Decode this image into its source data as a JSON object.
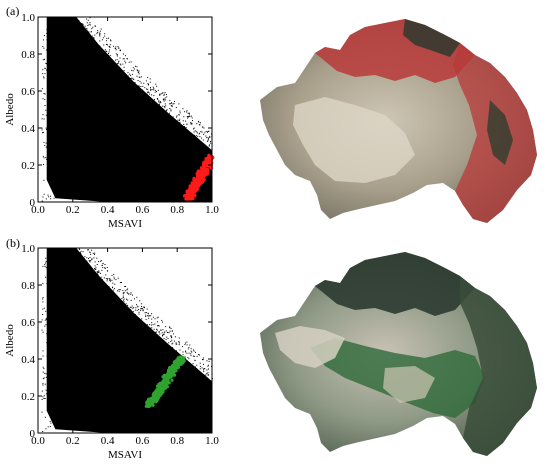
{
  "panels": [
    {
      "label": "(a)",
      "highlight_color": "#ff1a1a",
      "map_tint": "#b83a3a"
    },
    {
      "label": "(b)",
      "highlight_color": "#2fa32f",
      "map_tint": "#2f6a3a"
    }
  ],
  "chart_data": [
    {
      "type": "scatter",
      "title": "",
      "xlabel": "MSAVI",
      "ylabel": "Albedo",
      "xlim": [
        0.0,
        1.0
      ],
      "ylim": [
        0.0,
        1.0
      ],
      "xticks": [
        "0.0",
        "0.2",
        "0.4",
        "0.6",
        "0.8",
        "1.0"
      ],
      "yticks": [
        "0",
        "0.2",
        "0.4",
        "0.6",
        "0.8",
        "1.0"
      ],
      "series": [
        {
          "color": "#000000",
          "envelope_upper": [
            [
              0.05,
              1.0
            ],
            [
              0.22,
              1.0
            ],
            [
              0.35,
              0.85
            ],
            [
              0.55,
              0.65
            ],
            [
              0.75,
              0.48
            ],
            [
              0.9,
              0.36
            ],
            [
              1.0,
              0.28
            ]
          ],
          "envelope_lower": [
            [
              0.05,
              0.12
            ],
            [
              0.1,
              0.02
            ],
            [
              0.4,
              0.0
            ],
            [
              0.7,
              0.0
            ],
            [
              1.0,
              0.0
            ]
          ],
          "core_band": [
            [
              0.1,
              0.98
            ],
            [
              0.2,
              0.92
            ],
            [
              0.3,
              0.72
            ],
            [
              0.5,
              0.42
            ],
            [
              0.7,
              0.22
            ],
            [
              0.95,
              0.05
            ]
          ]
        },
        {
          "color": "#ff1a1a",
          "points": [
            [
              0.86,
              0.02
            ],
            [
              0.9,
              0.06
            ],
            [
              0.93,
              0.1
            ],
            [
              0.96,
              0.15
            ],
            [
              0.99,
              0.2
            ],
            [
              1.0,
              0.24
            ],
            [
              0.88,
              0.03
            ],
            [
              0.95,
              0.12
            ]
          ]
        }
      ]
    },
    {
      "type": "scatter",
      "title": "",
      "xlabel": "MSAVI",
      "ylabel": "Albedo",
      "xlim": [
        0.0,
        1.0
      ],
      "ylim": [
        0.0,
        1.0
      ],
      "xticks": [
        "0.0",
        "0.2",
        "0.4",
        "0.6",
        "0.8",
        "1.0"
      ],
      "yticks": [
        "0",
        "0.2",
        "0.4",
        "0.6",
        "0.8",
        "1.0"
      ],
      "series": [
        {
          "color": "#000000",
          "envelope_upper": [
            [
              0.05,
              1.0
            ],
            [
              0.22,
              1.0
            ],
            [
              0.35,
              0.85
            ],
            [
              0.55,
              0.65
            ],
            [
              0.75,
              0.48
            ],
            [
              0.9,
              0.36
            ],
            [
              1.0,
              0.28
            ]
          ],
          "envelope_lower": [
            [
              0.05,
              0.12
            ],
            [
              0.1,
              0.02
            ],
            [
              0.4,
              0.0
            ],
            [
              0.7,
              0.0
            ],
            [
              1.0,
              0.0
            ]
          ],
          "core_band": [
            [
              0.1,
              0.98
            ],
            [
              0.2,
              0.92
            ],
            [
              0.3,
              0.72
            ],
            [
              0.5,
              0.42
            ],
            [
              0.7,
              0.22
            ],
            [
              0.95,
              0.05
            ]
          ]
        },
        {
          "color": "#2fa32f",
          "points": [
            [
              0.64,
              0.15
            ],
            [
              0.67,
              0.2
            ],
            [
              0.7,
              0.25
            ],
            [
              0.73,
              0.3
            ],
            [
              0.76,
              0.35
            ],
            [
              0.79,
              0.38
            ],
            [
              0.82,
              0.4
            ],
            [
              0.66,
              0.17
            ]
          ]
        }
      ]
    }
  ]
}
